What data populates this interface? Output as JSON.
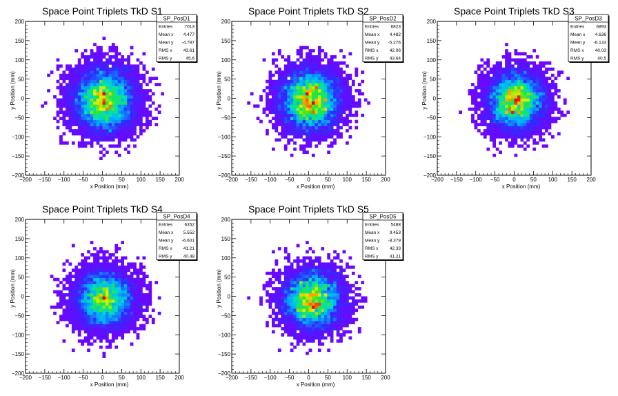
{
  "chart_data": [
    {
      "type": "heatmap",
      "title": "Space Point Triplets TkD S1",
      "xlabel": "x Position (mm)",
      "ylabel": "y Position (mm)",
      "xlim": [
        -200,
        200
      ],
      "ylim": [
        -200,
        200
      ],
      "xticks": [
        "−200",
        "−150",
        "−100",
        "−50",
        "0",
        "50",
        "100",
        "150",
        "200"
      ],
      "yticks": [
        "−200",
        "−150",
        "−100",
        "−50",
        "0",
        "50",
        "100",
        "150",
        "200"
      ],
      "stats": {
        "name": "SP_PosD1",
        "rows": [
          {
            "label": "Entries",
            "value": "7013"
          },
          {
            "label": "Mean x",
            "value": "4.477"
          },
          {
            "label": "Mean y",
            "value": "-4.787"
          },
          {
            "label": "RMS x",
            "value": "43.61"
          },
          {
            "label": "RMS y",
            "value": "45.6"
          }
        ]
      },
      "entries": 7013,
      "mean_x": 4.477,
      "mean_y": -4.787,
      "rms_x": 43.61,
      "rms_y": 45.6
    },
    {
      "type": "heatmap",
      "title": "Space Point Triplets TkD S2",
      "xlabel": "x Position (mm)",
      "ylabel": "y Position (mm)",
      "xlim": [
        -200,
        200
      ],
      "ylim": [
        -200,
        200
      ],
      "xticks": [
        "−200",
        "−150",
        "−100",
        "−50",
        "0",
        "50",
        "100",
        "150",
        "200"
      ],
      "yticks": [
        "−200",
        "−150",
        "−100",
        "−50",
        "0",
        "50",
        "100",
        "150",
        "200"
      ],
      "stats": {
        "name": "SP_PosD2",
        "rows": [
          {
            "label": "Entries",
            "value": "6823"
          },
          {
            "label": "Mean x",
            "value": "4.482"
          },
          {
            "label": "Mean y",
            "value": "-5.276"
          },
          {
            "label": "RMS x",
            "value": "42.06"
          },
          {
            "label": "RMS y",
            "value": "43.64"
          }
        ]
      },
      "entries": 6823,
      "mean_x": 4.482,
      "mean_y": -5.276,
      "rms_x": 42.06,
      "rms_y": 43.64
    },
    {
      "type": "heatmap",
      "title": "Space Point Triplets TkD S3",
      "xlabel": "x Position (mm)",
      "ylabel": "y Position (mm)",
      "xlim": [
        -200,
        200
      ],
      "ylim": [
        -200,
        200
      ],
      "xticks": [
        "−200",
        "−150",
        "−100",
        "−50",
        "0",
        "50",
        "100",
        "150",
        "200"
      ],
      "yticks": [
        "−200",
        "−150",
        "−100",
        "−50",
        "0",
        "50",
        "100",
        "150",
        "200"
      ],
      "stats": {
        "name": "SP_PosD3",
        "rows": [
          {
            "label": "Entries",
            "value": "6893"
          },
          {
            "label": "Mean x",
            "value": "4.636"
          },
          {
            "label": "Mean y",
            "value": "-6.133"
          },
          {
            "label": "RMS x",
            "value": "40.03"
          },
          {
            "label": "RMS y",
            "value": "40.5"
          }
        ]
      },
      "entries": 6893,
      "mean_x": 4.636,
      "mean_y": -6.133,
      "rms_x": 40.03,
      "rms_y": 40.5
    },
    {
      "type": "heatmap",
      "title": "Space Point Triplets TkD S4",
      "xlabel": "x Position (mm)",
      "ylabel": "y Position (mm)",
      "xlim": [
        -200,
        200
      ],
      "ylim": [
        -200,
        200
      ],
      "xticks": [
        "−200",
        "−150",
        "−100",
        "−50",
        "0",
        "50",
        "100",
        "150",
        "200"
      ],
      "yticks": [
        "−200",
        "−150",
        "−100",
        "−50",
        "0",
        "50",
        "100",
        "150",
        "200"
      ],
      "stats": {
        "name": "SP_PosD4",
        "rows": [
          {
            "label": "Entries",
            "value": "6352"
          },
          {
            "label": "Mean x",
            "value": "5.552"
          },
          {
            "label": "Mean y",
            "value": "-6.601"
          },
          {
            "label": "RMS x",
            "value": "41.21"
          },
          {
            "label": "RMS y",
            "value": "40.48"
          }
        ]
      },
      "entries": 6352,
      "mean_x": 5.552,
      "mean_y": -6.601,
      "rms_x": 41.21,
      "rms_y": 40.48
    },
    {
      "type": "heatmap",
      "title": "Space Point Triplets TkD S5",
      "xlabel": "x Position (mm)",
      "ylabel": "y Position (mm)",
      "xlim": [
        -200,
        200
      ],
      "ylim": [
        -200,
        200
      ],
      "xticks": [
        "−200",
        "−150",
        "−100",
        "−50",
        "0",
        "50",
        "100",
        "150",
        "200"
      ],
      "yticks": [
        "−200",
        "−150",
        "−100",
        "−50",
        "0",
        "50",
        "100",
        "150",
        "200"
      ],
      "stats": {
        "name": "SP_PosD5",
        "rows": [
          {
            "label": "Entries",
            "value": "5488"
          },
          {
            "label": "Mean x",
            "value": "9.453"
          },
          {
            "label": "Mean y",
            "value": "-8.379"
          },
          {
            "label": "RMS x",
            "value": "42.33"
          },
          {
            "label": "RMS y",
            "value": "41.21"
          }
        ]
      },
      "entries": 5488,
      "mean_x": 9.453,
      "mean_y": -8.379,
      "rms_x": 42.33,
      "rms_y": 41.21
    }
  ]
}
